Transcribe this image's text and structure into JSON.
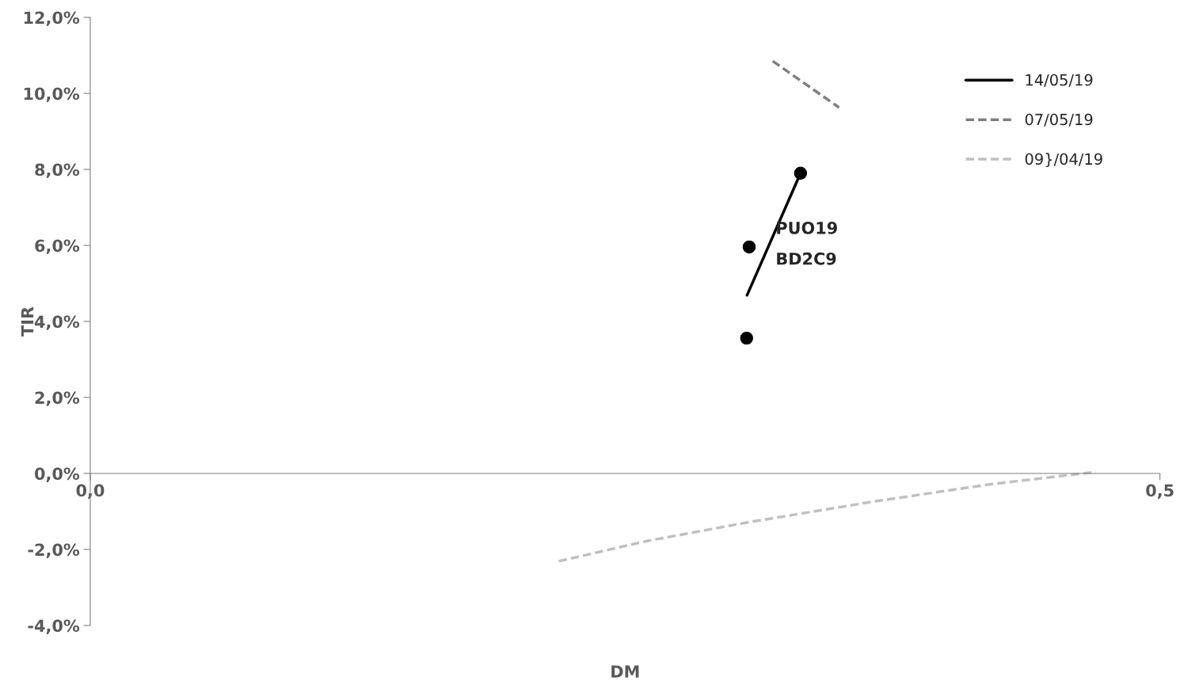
{
  "chart_data": {
    "type": "line",
    "xlabel": "DM",
    "ylabel": "TIR",
    "xlim": [
      0,
      0.5
    ],
    "xticks": [
      {
        "value": 0,
        "label": "0,0"
      },
      {
        "value": 0.5,
        "label": "0,5"
      }
    ],
    "ylim": [
      -4,
      12
    ],
    "yticks": [
      {
        "value": -4,
        "label": "-4,0%"
      },
      {
        "value": -2,
        "label": "-2,0%"
      },
      {
        "value": 0,
        "label": "0,0%"
      },
      {
        "value": 2,
        "label": "2,0%"
      },
      {
        "value": 4,
        "label": "4,0%"
      },
      {
        "value": 6,
        "label": "6,0%"
      },
      {
        "value": 8,
        "label": "8,0%"
      },
      {
        "value": 10,
        "label": "10,0%"
      },
      {
        "value": 12,
        "label": "12,0%"
      }
    ],
    "grid": false,
    "legend": "top right",
    "series": [
      {
        "name": "14/05/19",
        "line_style": "solid",
        "color": "#000000",
        "x": [
          0.307,
          0.332
        ],
        "values": [
          4.69,
          7.9
        ]
      },
      {
        "name": "07/05/19",
        "line_style": "dashed",
        "color": "#7f7f7f",
        "x": [
          0.319,
          0.35
        ],
        "values": [
          10.85,
          9.63
        ]
      },
      {
        "name": "09}/04/19",
        "line_style": "dashed",
        "color": "#c0c0c0",
        "x": [
          0.219,
          0.26,
          0.307,
          0.365,
          0.42,
          0.47
        ],
        "values": [
          -2.31,
          -1.78,
          -1.29,
          -0.75,
          -0.29,
          0.04
        ]
      },
      {
        "type": "scatter",
        "marker": "circle",
        "color": "#000000",
        "x": [
          0.3068,
          0.308,
          0.332
        ],
        "values": [
          3.56,
          5.96,
          7.9
        ]
      }
    ],
    "annotations": [
      {
        "text": "PUO19",
        "x": 0.308,
        "y": 5.96
      },
      {
        "text": "BD2C9",
        "x": 0.308,
        "y": 5.96
      }
    ]
  }
}
